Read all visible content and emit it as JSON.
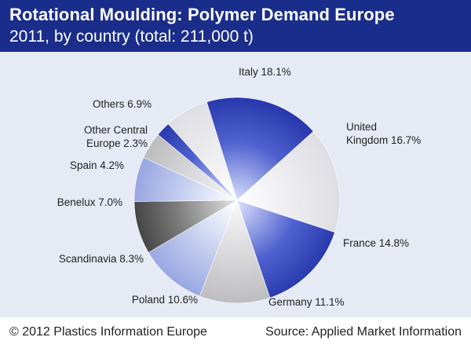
{
  "header": {
    "title": "Rotational Moulding: Polymer Demand Europe",
    "subtitle": "2011, by country (total: 211,000 t)"
  },
  "footer": {
    "copyright": "© 2012 Plastics Information Europe",
    "source": "Source: Applied Market Information"
  },
  "colors": {
    "header_bg": "#1a2d8a",
    "panel_bg": "#e6eaf4",
    "blue": "#2a3db0",
    "light_blue": "#a9b6ea",
    "light_gray": "#e6e6ea",
    "gray": "#cfcfd2",
    "dark_gray": "#4a4a4a"
  },
  "chart_data": {
    "type": "pie",
    "title": "Rotational Moulding: Polymer Demand Europe",
    "subtitle": "2011, by country (total: 211,000 t)",
    "unit": "%",
    "slices": [
      {
        "name": "Italy",
        "value": 18.1,
        "label": "Italy 18.1%",
        "color": "#2a3db0",
        "fill": "blue-radial"
      },
      {
        "name": "United Kingdom",
        "value": 16.7,
        "label_lines": [
          "United",
          "Kingdom 16.7%"
        ],
        "color": "#e6e6ea",
        "fill": "lightgray-radial"
      },
      {
        "name": "France",
        "value": 14.8,
        "label": "France 14.8%",
        "color": "#2a3db0",
        "fill": "blue-radial"
      },
      {
        "name": "Germany",
        "value": 11.1,
        "label": "Germany 11.1%",
        "color": "#cfcfd2",
        "fill": "gray-radial"
      },
      {
        "name": "Poland",
        "value": 10.6,
        "label": "Poland 10.6%",
        "color": "#a9b6ea",
        "fill": "lightblue-radial"
      },
      {
        "name": "Scandinavia",
        "value": 8.3,
        "label": "Scandinavia 8.3%",
        "color": "#4a4a4a",
        "fill": "dark-radial"
      },
      {
        "name": "Benelux",
        "value": 7.0,
        "label": "Benelux 7.0%",
        "color": "#a9b6ea",
        "fill": "lightblue-radial"
      },
      {
        "name": "Spain",
        "value": 4.2,
        "label": "Spain 4.2%",
        "color": "#cfcfd2",
        "fill": "gray-radial"
      },
      {
        "name": "Other Central Europe",
        "value": 2.3,
        "label_lines": [
          "Other Central",
          "Europe 2.3%"
        ],
        "color": "#2a3db0",
        "fill": "blue-radial"
      },
      {
        "name": "Others",
        "value": 6.9,
        "label": "Others 6.9%",
        "color": "#e6e6ea",
        "fill": "lightgray-radial"
      }
    ]
  }
}
